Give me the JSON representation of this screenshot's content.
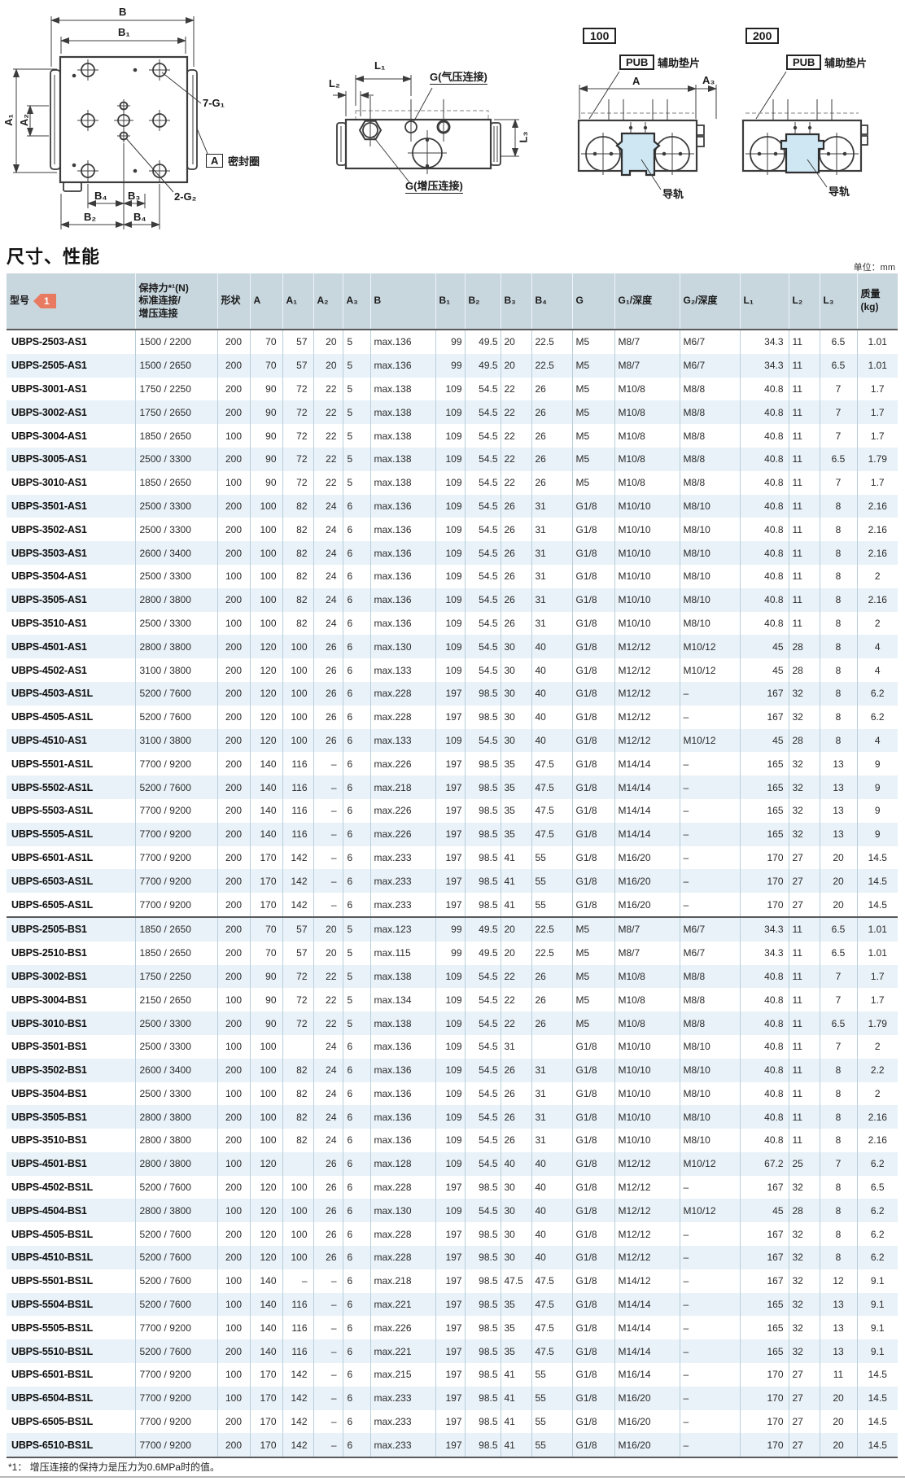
{
  "page": {
    "section_title": "尺寸、性能",
    "unit_note": "单位：mm",
    "footnote": "*1：  增压连接的保持力是压力为0.6MPa时的值。"
  },
  "colors": {
    "accent_orange": "#e87a61",
    "header_bg": "#c8d6de",
    "row_alt_bg": "#e9f2f8",
    "rail_fill": "#cfe6f3",
    "line": "#3c3c3c"
  },
  "drawings": {
    "plan_view": {
      "dim_B": "B",
      "dim_B1": "B₁",
      "dim_A1": "A₁",
      "dim_A2": "A₂",
      "holes_label": "7-G₁",
      "seal_tag": "A",
      "seal_label": "密封圈",
      "dim_B4_top": "B₄",
      "dim_B3": "B₃",
      "holes2_label": "2-G₂",
      "dim_B2": "B₂",
      "dim_B4_bottom": "B₄"
    },
    "side_view": {
      "dim_L1": "L₁",
      "dim_L2": "L₂",
      "dim_L3": "L₃",
      "air_port_label": "G(气压连接)",
      "boost_port_label": "G(增压连接)"
    },
    "section_100": {
      "tag": "100",
      "pub_tag": "PUB",
      "shim_label": "辅助垫片",
      "dim_A": "A",
      "dim_A3": "A₃",
      "rail_label": "导轨"
    },
    "section_200": {
      "tag": "200",
      "pub_tag": "PUB",
      "shim_label": "辅助垫片",
      "rail_label": "导轨"
    }
  },
  "table": {
    "header": {
      "model": "型号",
      "model_tag": "1",
      "holding_force": "保持力*¹(N)\n标准连接/\n增压连接",
      "cols": [
        "形状",
        "A",
        "A₁",
        "A₂",
        "A₃",
        "B",
        "B₁",
        "B₂",
        "B₃",
        "B₄",
        "G",
        "G₁/深度",
        "G₂/深度",
        "L₁",
        "L₂",
        "L₃",
        "质量\n(kg)"
      ]
    },
    "rows": [
      [
        "UBPS-2503-AS1",
        "1500 / 2200",
        "200",
        "70",
        "57",
        "20",
        "5",
        "max.136",
        "99",
        "49.5",
        "20",
        "22.5",
        "M5",
        "M8/7",
        "M6/7",
        "34.3",
        "11",
        "6.5",
        "1.01"
      ],
      [
        "UBPS-2505-AS1",
        "1500 / 2650",
        "200",
        "70",
        "57",
        "20",
        "5",
        "max.136",
        "99",
        "49.5",
        "20",
        "22.5",
        "M5",
        "M8/7",
        "M6/7",
        "34.3",
        "11",
        "6.5",
        "1.01"
      ],
      [
        "UBPS-3001-AS1",
        "1750 / 2250",
        "200",
        "90",
        "72",
        "22",
        "5",
        "max.138",
        "109",
        "54.5",
        "22",
        "26",
        "M5",
        "M10/8",
        "M8/8",
        "40.8",
        "11",
        "7",
        "1.7"
      ],
      [
        "UBPS-3002-AS1",
        "1750 / 2650",
        "200",
        "90",
        "72",
        "22",
        "5",
        "max.138",
        "109",
        "54.5",
        "22",
        "26",
        "M5",
        "M10/8",
        "M8/8",
        "40.8",
        "11",
        "7",
        "1.7"
      ],
      [
        "UBPS-3004-AS1",
        "1850 / 2650",
        "100",
        "90",
        "72",
        "22",
        "5",
        "max.138",
        "109",
        "54.5",
        "22",
        "26",
        "M5",
        "M10/8",
        "M8/8",
        "40.8",
        "11",
        "7",
        "1.7"
      ],
      [
        "UBPS-3005-AS1",
        "2500 / 3300",
        "200",
        "90",
        "72",
        "22",
        "5",
        "max.138",
        "109",
        "54.5",
        "22",
        "26",
        "M5",
        "M10/8",
        "M8/8",
        "40.8",
        "11",
        "6.5",
        "1.79"
      ],
      [
        "UBPS-3010-AS1",
        "1850 / 2650",
        "100",
        "90",
        "72",
        "22",
        "5",
        "max.138",
        "109",
        "54.5",
        "22",
        "26",
        "M5",
        "M10/8",
        "M8/8",
        "40.8",
        "11",
        "7",
        "1.7"
      ],
      [
        "UBPS-3501-AS1",
        "2500 / 3300",
        "200",
        "100",
        "82",
        "24",
        "6",
        "max.136",
        "109",
        "54.5",
        "26",
        "31",
        "G1/8",
        "M10/10",
        "M8/10",
        "40.8",
        "11",
        "8",
        "2.16"
      ],
      [
        "UBPS-3502-AS1",
        "2500 / 3300",
        "200",
        "100",
        "82",
        "24",
        "6",
        "max.136",
        "109",
        "54.5",
        "26",
        "31",
        "G1/8",
        "M10/10",
        "M8/10",
        "40.8",
        "11",
        "8",
        "2.16"
      ],
      [
        "UBPS-3503-AS1",
        "2600 / 3400",
        "200",
        "100",
        "82",
        "24",
        "6",
        "max.136",
        "109",
        "54.5",
        "26",
        "31",
        "G1/8",
        "M10/10",
        "M8/10",
        "40.8",
        "11",
        "8",
        "2.16"
      ],
      [
        "UBPS-3504-AS1",
        "2500 / 3300",
        "100",
        "100",
        "82",
        "24",
        "6",
        "max.136",
        "109",
        "54.5",
        "26",
        "31",
        "G1/8",
        "M10/10",
        "M8/10",
        "40.8",
        "11",
        "8",
        "2"
      ],
      [
        "UBPS-3505-AS1",
        "2800 / 3800",
        "200",
        "100",
        "82",
        "24",
        "6",
        "max.136",
        "109",
        "54.5",
        "26",
        "31",
        "G1/8",
        "M10/10",
        "M8/10",
        "40.8",
        "11",
        "8",
        "2.16"
      ],
      [
        "UBPS-3510-AS1",
        "2500 / 3300",
        "100",
        "100",
        "82",
        "24",
        "6",
        "max.136",
        "109",
        "54.5",
        "26",
        "31",
        "G1/8",
        "M10/10",
        "M8/10",
        "40.8",
        "11",
        "8",
        "2"
      ],
      [
        "UBPS-4501-AS1",
        "2800 / 3800",
        "200",
        "120",
        "100",
        "26",
        "6",
        "max.130",
        "109",
        "54.5",
        "30",
        "40",
        "G1/8",
        "M12/12",
        "M10/12",
        "45",
        "28",
        "8",
        "4"
      ],
      [
        "UBPS-4502-AS1",
        "3100 / 3800",
        "200",
        "120",
        "100",
        "26",
        "6",
        "max.133",
        "109",
        "54.5",
        "30",
        "40",
        "G1/8",
        "M12/12",
        "M10/12",
        "45",
        "28",
        "8",
        "4"
      ],
      [
        "UBPS-4503-AS1L",
        "5200 / 7600",
        "200",
        "120",
        "100",
        "26",
        "6",
        "max.228",
        "197",
        "98.5",
        "30",
        "40",
        "G1/8",
        "M12/12",
        "–",
        "167",
        "32",
        "8",
        "6.2"
      ],
      [
        "UBPS-4505-AS1L",
        "5200 / 7600",
        "200",
        "120",
        "100",
        "26",
        "6",
        "max.228",
        "197",
        "98.5",
        "30",
        "40",
        "G1/8",
        "M12/12",
        "–",
        "167",
        "32",
        "8",
        "6.2"
      ],
      [
        "UBPS-4510-AS1",
        "3100 / 3800",
        "200",
        "120",
        "100",
        "26",
        "6",
        "max.133",
        "109",
        "54.5",
        "30",
        "40",
        "G1/8",
        "M12/12",
        "M10/12",
        "45",
        "28",
        "8",
        "4"
      ],
      [
        "UBPS-5501-AS1L",
        "7700 / 9200",
        "200",
        "140",
        "116",
        "–",
        "6",
        "max.226",
        "197",
        "98.5",
        "35",
        "47.5",
        "G1/8",
        "M14/14",
        "–",
        "165",
        "32",
        "13",
        "9"
      ],
      [
        "UBPS-5502-AS1L",
        "5200 / 7600",
        "200",
        "140",
        "116",
        "–",
        "6",
        "max.218",
        "197",
        "98.5",
        "35",
        "47.5",
        "G1/8",
        "M14/14",
        "–",
        "165",
        "32",
        "13",
        "9"
      ],
      [
        "UBPS-5503-AS1L",
        "7700 / 9200",
        "200",
        "140",
        "116",
        "–",
        "6",
        "max.226",
        "197",
        "98.5",
        "35",
        "47.5",
        "G1/8",
        "M14/14",
        "–",
        "165",
        "32",
        "13",
        "9"
      ],
      [
        "UBPS-5505-AS1L",
        "7700 / 9200",
        "200",
        "140",
        "116",
        "–",
        "6",
        "max.226",
        "197",
        "98.5",
        "35",
        "47.5",
        "G1/8",
        "M14/14",
        "–",
        "165",
        "32",
        "13",
        "9"
      ],
      [
        "UBPS-6501-AS1L",
        "7700 / 9200",
        "200",
        "170",
        "142",
        "–",
        "6",
        "max.233",
        "197",
        "98.5",
        "41",
        "55",
        "G1/8",
        "M16/20",
        "–",
        "170",
        "27",
        "20",
        "14.5"
      ],
      [
        "UBPS-6503-AS1L",
        "7700 / 9200",
        "200",
        "170",
        "142",
        "–",
        "6",
        "max.233",
        "197",
        "98.5",
        "41",
        "55",
        "G1/8",
        "M16/20",
        "–",
        "170",
        "27",
        "20",
        "14.5"
      ],
      [
        "UBPS-6505-AS1L",
        "7700 / 9200",
        "200",
        "170",
        "142",
        "–",
        "6",
        "max.233",
        "197",
        "98.5",
        "41",
        "55",
        "G1/8",
        "M16/20",
        "–",
        "170",
        "27",
        "20",
        "14.5"
      ],
      [
        "UBPS-2505-BS1",
        "1850 / 2650",
        "200",
        "70",
        "57",
        "20",
        "5",
        "max.123",
        "99",
        "49.5",
        "20",
        "22.5",
        "M5",
        "M8/7",
        "M6/7",
        "34.3",
        "11",
        "6.5",
        "1.01"
      ],
      [
        "UBPS-2510-BS1",
        "1850 / 2650",
        "200",
        "70",
        "57",
        "20",
        "5",
        "max.115",
        "99",
        "49.5",
        "20",
        "22.5",
        "M5",
        "M8/7",
        "M6/7",
        "34.3",
        "11",
        "6.5",
        "1.01"
      ],
      [
        "UBPS-3002-BS1",
        "1750 / 2250",
        "200",
        "90",
        "72",
        "22",
        "5",
        "max.138",
        "109",
        "54.5",
        "22",
        "26",
        "M5",
        "M10/8",
        "M8/8",
        "40.8",
        "11",
        "7",
        "1.7"
      ],
      [
        "UBPS-3004-BS1",
        "2150 / 2650",
        "100",
        "90",
        "72",
        "22",
        "5",
        "max.134",
        "109",
        "54.5",
        "22",
        "26",
        "M5",
        "M10/8",
        "M8/8",
        "40.8",
        "11",
        "7",
        "1.7"
      ],
      [
        "UBPS-3010-BS1",
        "2500 / 3300",
        "200",
        "90",
        "72",
        "22",
        "5",
        "max.138",
        "109",
        "54.5",
        "22",
        "26",
        "M5",
        "M10/8",
        "M8/8",
        "40.8",
        "11",
        "6.5",
        "1.79"
      ],
      [
        "UBPS-3501-BS1",
        "2500 / 3300",
        "100",
        "100",
        "",
        "24",
        "6",
        "max.136",
        "109",
        "54.5",
        "31",
        "",
        "G1/8",
        "M10/10",
        "M8/10",
        "40.8",
        "11",
        "7",
        "2"
      ],
      [
        "UBPS-3502-BS1",
        "2600 / 3400",
        "200",
        "100",
        "82",
        "24",
        "6",
        "max.136",
        "109",
        "54.5",
        "26",
        "31",
        "G1/8",
        "M10/10",
        "M8/10",
        "40.8",
        "11",
        "8",
        "2.2"
      ],
      [
        "UBPS-3504-BS1",
        "2500 / 3300",
        "100",
        "100",
        "82",
        "24",
        "6",
        "max.136",
        "109",
        "54.5",
        "26",
        "31",
        "G1/8",
        "M10/10",
        "M8/10",
        "40.8",
        "11",
        "8",
        "2"
      ],
      [
        "UBPS-3505-BS1",
        "2800 / 3800",
        "200",
        "100",
        "82",
        "24",
        "6",
        "max.136",
        "109",
        "54.5",
        "26",
        "31",
        "G1/8",
        "M10/10",
        "M8/10",
        "40.8",
        "11",
        "8",
        "2.16"
      ],
      [
        "UBPS-3510-BS1",
        "2800 / 3800",
        "200",
        "100",
        "82",
        "24",
        "6",
        "max.136",
        "109",
        "54.5",
        "26",
        "31",
        "G1/8",
        "M10/10",
        "M8/10",
        "40.8",
        "11",
        "8",
        "2.16"
      ],
      [
        "UBPS-4501-BS1",
        "2800 / 3800",
        "100",
        "120",
        "",
        "26",
        "6",
        "max.128",
        "109",
        "54.5",
        "40",
        "40",
        "G1/8",
        "M12/12",
        "M10/12",
        "67.2",
        "25",
        "7",
        "6.2"
      ],
      [
        "UBPS-4502-BS1L",
        "5200 / 7600",
        "200",
        "120",
        "100",
        "26",
        "6",
        "max.228",
        "197",
        "98.5",
        "30",
        "40",
        "G1/8",
        "M12/12",
        "–",
        "167",
        "32",
        "8",
        "6.5"
      ],
      [
        "UBPS-4504-BS1",
        "2800 / 3800",
        "100",
        "120",
        "100",
        "26",
        "6",
        "max.130",
        "109",
        "54.5",
        "30",
        "40",
        "G1/8",
        "M12/12",
        "M10/12",
        "45",
        "28",
        "8",
        "6.2"
      ],
      [
        "UBPS-4505-BS1L",
        "5200 / 7600",
        "200",
        "120",
        "100",
        "26",
        "6",
        "max.228",
        "197",
        "98.5",
        "30",
        "40",
        "G1/8",
        "M12/12",
        "–",
        "167",
        "32",
        "8",
        "6.2"
      ],
      [
        "UBPS-4510-BS1L",
        "5200 / 7600",
        "200",
        "120",
        "100",
        "26",
        "6",
        "max.228",
        "197",
        "98.5",
        "30",
        "40",
        "G1/8",
        "M12/12",
        "–",
        "167",
        "32",
        "8",
        "6.2"
      ],
      [
        "UBPS-5501-BS1L",
        "5200 / 7600",
        "100",
        "140",
        "–",
        "–",
        "6",
        "max.218",
        "197",
        "98.5",
        "47.5",
        "47.5",
        "G1/8",
        "M14/12",
        "–",
        "167",
        "32",
        "12",
        "9.1"
      ],
      [
        "UBPS-5504-BS1L",
        "5200 / 7600",
        "100",
        "140",
        "116",
        "–",
        "6",
        "max.221",
        "197",
        "98.5",
        "35",
        "47.5",
        "G1/8",
        "M14/14",
        "–",
        "165",
        "32",
        "13",
        "9.1"
      ],
      [
        "UBPS-5505-BS1L",
        "7700 / 9200",
        "100",
        "140",
        "116",
        "–",
        "6",
        "max.226",
        "197",
        "98.5",
        "35",
        "47.5",
        "G1/8",
        "M14/14",
        "–",
        "165",
        "32",
        "13",
        "9.1"
      ],
      [
        "UBPS-5510-BS1L",
        "5200 / 7600",
        "200",
        "140",
        "116",
        "–",
        "6",
        "max.221",
        "197",
        "98.5",
        "35",
        "47.5",
        "G1/8",
        "M14/14",
        "–",
        "165",
        "32",
        "13",
        "9.1"
      ],
      [
        "UBPS-6501-BS1L",
        "7700 / 9200",
        "100",
        "170",
        "142",
        "–",
        "6",
        "max.215",
        "197",
        "98.5",
        "41",
        "55",
        "G1/8",
        "M16/14",
        "–",
        "170",
        "27",
        "11",
        "14.5"
      ],
      [
        "UBPS-6504-BS1L",
        "7700 / 9200",
        "100",
        "170",
        "142",
        "–",
        "6",
        "max.233",
        "197",
        "98.5",
        "41",
        "55",
        "G1/8",
        "M16/20",
        "–",
        "170",
        "27",
        "20",
        "14.5"
      ],
      [
        "UBPS-6505-BS1L",
        "7700 / 9200",
        "200",
        "170",
        "142",
        "–",
        "6",
        "max.233",
        "197",
        "98.5",
        "41",
        "55",
        "G1/8",
        "M16/20",
        "–",
        "170",
        "27",
        "20",
        "14.5"
      ],
      [
        "UBPS-6510-BS1L",
        "7700 / 9200",
        "200",
        "170",
        "142",
        "–",
        "6",
        "max.233",
        "197",
        "98.5",
        "41",
        "55",
        "G1/8",
        "M16/20",
        "–",
        "170",
        "27",
        "20",
        "14.5"
      ]
    ]
  }
}
